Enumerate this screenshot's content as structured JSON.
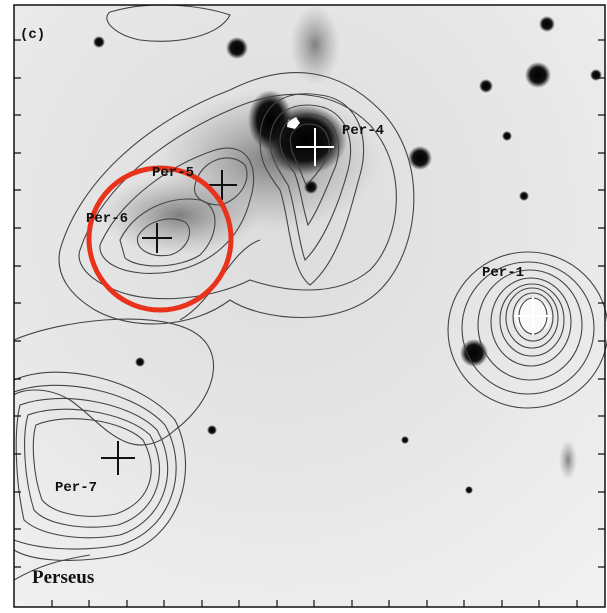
{
  "panel_label": "(c)",
  "sources": [
    {
      "label": "Per-4"
    },
    {
      "label": "Per-5"
    },
    {
      "label": "Per-6"
    },
    {
      "label": "Per-1"
    },
    {
      "label": "Per-7"
    }
  ],
  "region_label": "Perseus"
}
